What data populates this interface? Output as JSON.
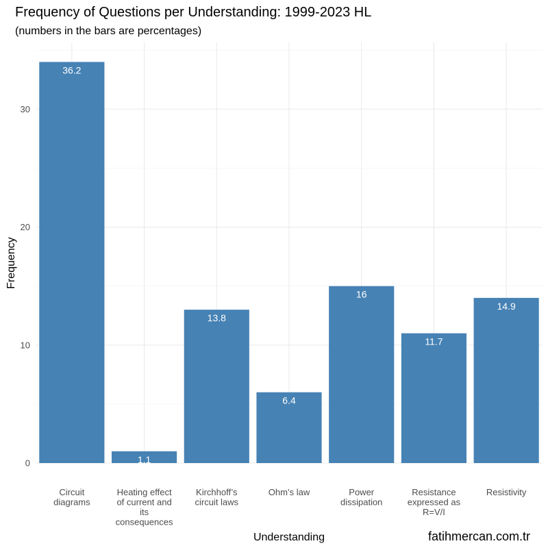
{
  "chart_data": {
    "type": "bar",
    "title": "Frequency of Questions per Understanding: 1999-2023 HL",
    "subtitle": "(numbers in the bars are percentages)",
    "xlabel": "Understanding",
    "ylabel": "Frequency",
    "categories": [
      [
        "Circuit",
        "diagrams"
      ],
      [
        "Heating effect",
        "of current and",
        "its",
        "consequences"
      ],
      [
        "Kirchhoff’s",
        "circuit laws"
      ],
      [
        "Ohm’s law"
      ],
      [
        "Power",
        "dissipation"
      ],
      [
        "Resistance",
        "expressed as",
        "R=V/I"
      ],
      [
        "Resistivity"
      ]
    ],
    "values": [
      34,
      1,
      13,
      6,
      15,
      11,
      14
    ],
    "percent_labels": [
      "36.2",
      "1.1",
      "13.8",
      "6.4",
      "16",
      "11.7",
      "14.9"
    ],
    "ylim": [
      0,
      35.65
    ],
    "yticks": [
      0,
      10,
      20,
      30
    ],
    "bar_color": "#4682b4",
    "grid": true
  },
  "watermark": "fatihmercan.com.tr"
}
